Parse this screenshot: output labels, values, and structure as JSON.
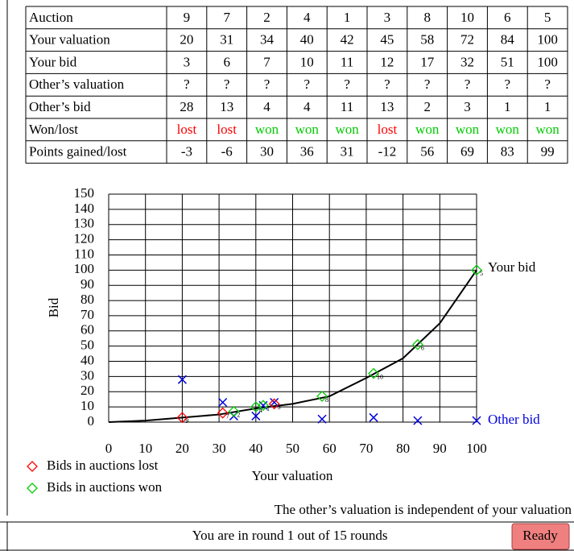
{
  "table": {
    "rows": [
      {
        "label": "Auction",
        "cells": [
          9,
          7,
          2,
          4,
          1,
          3,
          8,
          10,
          6,
          5
        ]
      },
      {
        "label": "Your valuation",
        "cells": [
          20,
          31,
          34,
          40,
          42,
          45,
          58,
          72,
          84,
          100
        ]
      },
      {
        "label": "Your bid",
        "cells": [
          3,
          6,
          7,
          10,
          11,
          12,
          17,
          32,
          51,
          100
        ]
      },
      {
        "label": "Other’s valuation",
        "cells": [
          "?",
          "?",
          "?",
          "?",
          "?",
          "?",
          "?",
          "?",
          "?",
          "?"
        ]
      },
      {
        "label": "Other’s bid",
        "cells": [
          28,
          13,
          4,
          4,
          11,
          13,
          2,
          3,
          1,
          1
        ]
      },
      {
        "label": "Won/lost",
        "cells": [
          "lost",
          "lost",
          "won",
          "won",
          "won",
          "lost",
          "won",
          "won",
          "won",
          "won"
        ],
        "colors": [
          "#ff0000",
          "#ff0000",
          "#00cc00",
          "#00cc00",
          "#00cc00",
          "#ff0000",
          "#00cc00",
          "#00cc00",
          "#00cc00",
          "#00cc00"
        ]
      },
      {
        "label": "Points gained/lost",
        "cells": [
          -3,
          -6,
          30,
          36,
          31,
          -12,
          56,
          69,
          83,
          99
        ]
      }
    ]
  },
  "chart_data": {
    "type": "scatter",
    "xlabel": "Your valuation",
    "ylabel": "Bid",
    "xlim": [
      0,
      100
    ],
    "ylim": [
      0,
      150
    ],
    "xticks": [
      0,
      10,
      20,
      30,
      40,
      50,
      60,
      70,
      80,
      90,
      100
    ],
    "yticks": [
      0,
      10,
      20,
      30,
      40,
      50,
      60,
      70,
      80,
      90,
      100,
      110,
      120,
      130,
      140,
      150
    ],
    "grid": true,
    "bid_function": {
      "name": "Your bid",
      "color": "#000000",
      "x": [
        0,
        10,
        20,
        30,
        40,
        50,
        60,
        70,
        80,
        90,
        100
      ],
      "values": [
        0,
        1,
        3,
        5,
        9,
        12,
        17,
        29,
        42,
        65,
        100
      ]
    },
    "bids": {
      "x": [
        20,
        31,
        34,
        40,
        42,
        45,
        58,
        72,
        84,
        100
      ],
      "values": [
        3,
        6,
        7,
        10,
        11,
        12,
        17,
        32,
        51,
        100
      ],
      "colors": [
        "#ff0000",
        "#ff0000",
        "#00cc00",
        "#00cc00",
        "#00cc00",
        "#ff0000",
        "#00cc00",
        "#00cc00",
        "#00cc00",
        "#00cc00"
      ]
    },
    "other_bids": {
      "name": "Other bid",
      "color": "#0000dd",
      "x": [
        20,
        31,
        34,
        40,
        42,
        45,
        58,
        72,
        84,
        100
      ],
      "values": [
        28,
        13,
        4,
        4,
        11,
        13,
        2,
        3,
        1,
        1
      ]
    },
    "legend": [
      {
        "label": "Bids in auctions lost",
        "color": "#ff0000"
      },
      {
        "label": "Bids in auctions won",
        "color": "#00cc00"
      }
    ],
    "note": "The other’s valuation is independent of your valuation"
  },
  "footer": {
    "text": "You are in round 1 out of 15 rounds",
    "button": "Ready"
  }
}
